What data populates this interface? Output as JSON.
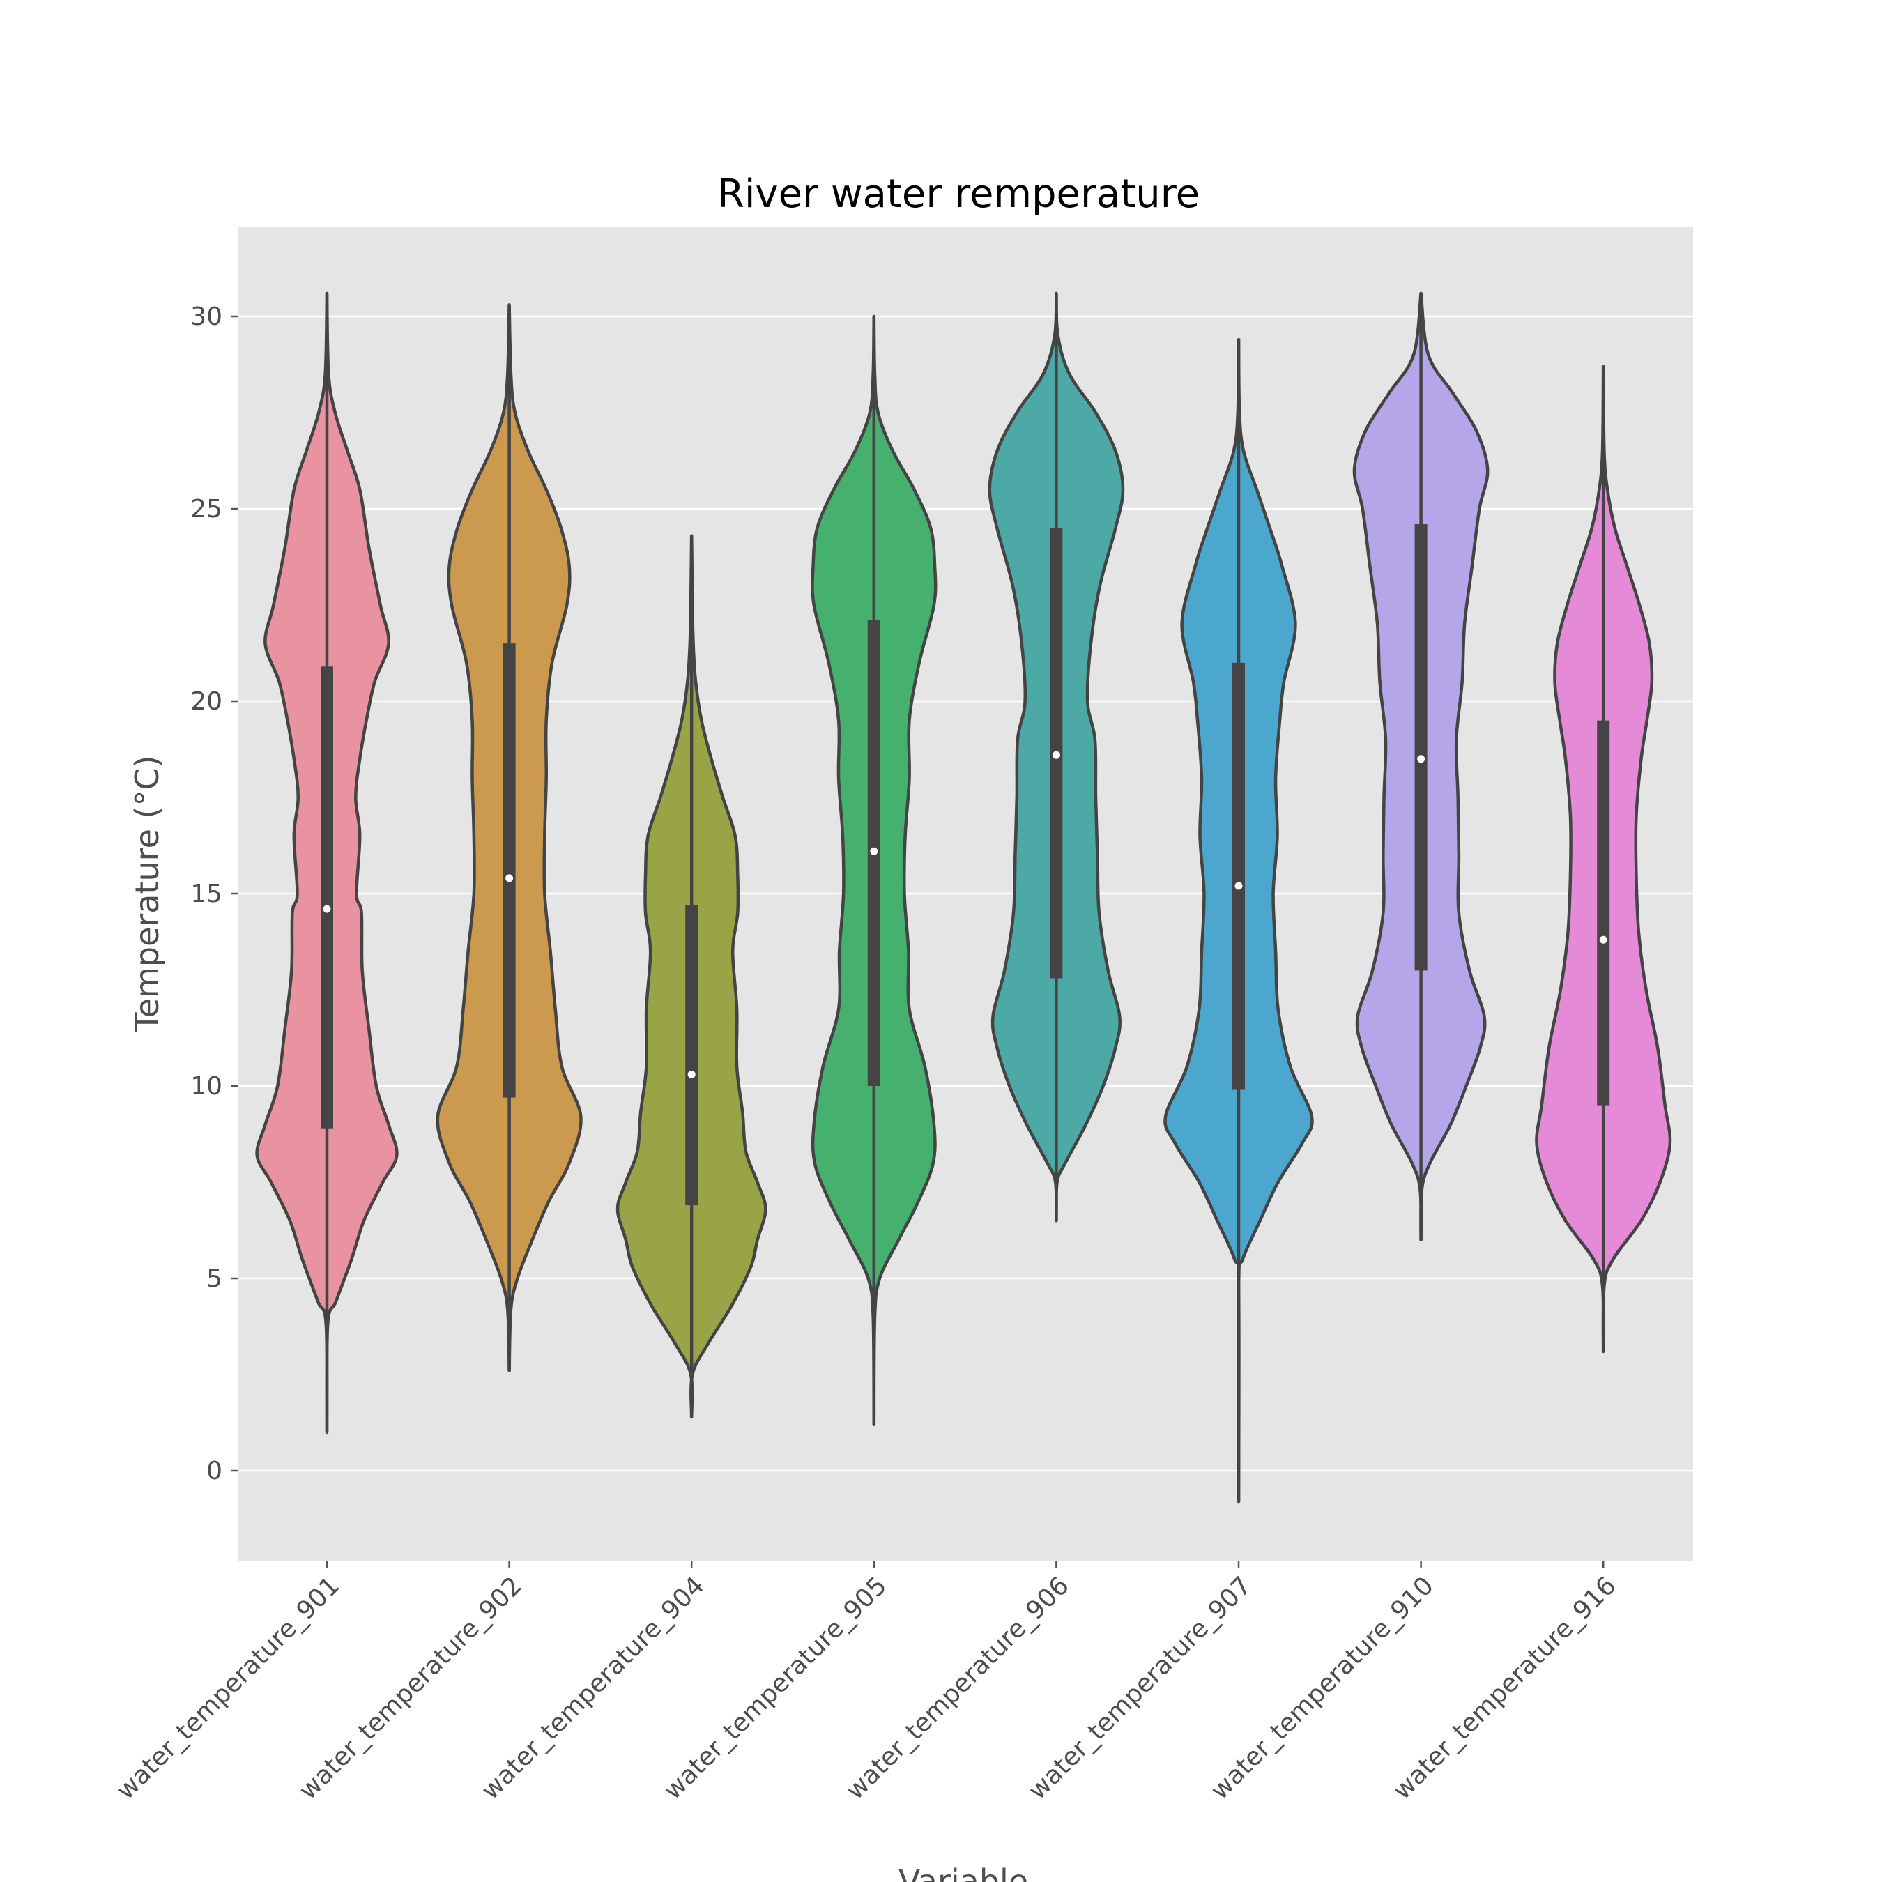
{
  "chart_data": {
    "type": "violin",
    "title": "River water remperature",
    "xlabel": "Variable",
    "ylabel": "Temperature (°C)",
    "ylim": [
      -2.3,
      32.3
    ],
    "yticks": [
      0,
      5,
      10,
      15,
      20,
      25,
      30
    ],
    "grid": true,
    "background": "#e5e5e5",
    "line_color": "#444444",
    "categories": [
      "water_temperature_901",
      "water_temperature_902",
      "water_temperature_904",
      "water_temperature_905",
      "water_temperature_906",
      "water_temperature_907",
      "water_temperature_910",
      "water_temperature_916"
    ],
    "series": [
      {
        "color": "#e8939f",
        "min": 1.0,
        "max": 30.6,
        "q1": 8.9,
        "median": 14.6,
        "q3": 20.9,
        "density": [
          [
            1.0,
            0.0
          ],
          [
            3.8,
            0.01
          ],
          [
            4.4,
            0.11
          ],
          [
            5.5,
            0.3
          ],
          [
            6.5,
            0.45
          ],
          [
            7.5,
            0.68
          ],
          [
            8.2,
            0.85
          ],
          [
            9.0,
            0.75
          ],
          [
            10.0,
            0.6
          ],
          [
            11.5,
            0.51
          ],
          [
            13.0,
            0.43
          ],
          [
            14.5,
            0.42
          ],
          [
            15.0,
            0.36
          ],
          [
            16.5,
            0.4
          ],
          [
            17.5,
            0.35
          ],
          [
            18.5,
            0.4
          ],
          [
            19.5,
            0.48
          ],
          [
            20.5,
            0.58
          ],
          [
            21.5,
            0.75
          ],
          [
            22.5,
            0.65
          ],
          [
            24.0,
            0.51
          ],
          [
            25.5,
            0.4
          ],
          [
            26.5,
            0.25
          ],
          [
            27.5,
            0.1
          ],
          [
            28.5,
            0.02
          ],
          [
            30.6,
            0.0
          ]
        ]
      },
      {
        "color": "#cc9a4f",
        "min": 2.6,
        "max": 30.3,
        "q1": 9.7,
        "median": 15.4,
        "q3": 21.5,
        "density": [
          [
            2.6,
            0.0
          ],
          [
            4.2,
            0.02
          ],
          [
            5.0,
            0.1
          ],
          [
            6.0,
            0.28
          ],
          [
            7.0,
            0.48
          ],
          [
            8.0,
            0.73
          ],
          [
            9.2,
            0.87
          ],
          [
            10.5,
            0.64
          ],
          [
            12.0,
            0.56
          ],
          [
            13.5,
            0.5
          ],
          [
            15.0,
            0.43
          ],
          [
            16.5,
            0.43
          ],
          [
            18.0,
            0.45
          ],
          [
            19.5,
            0.45
          ],
          [
            21.0,
            0.52
          ],
          [
            22.5,
            0.7
          ],
          [
            23.5,
            0.73
          ],
          [
            24.5,
            0.63
          ],
          [
            25.5,
            0.45
          ],
          [
            26.5,
            0.23
          ],
          [
            27.5,
            0.07
          ],
          [
            28.5,
            0.02
          ],
          [
            30.3,
            0.0
          ]
        ]
      },
      {
        "color": "#98a446",
        "min": 1.4,
        "max": 24.3,
        "q1": 6.9,
        "median": 10.3,
        "q3": 14.7,
        "density": [
          [
            1.4,
            0.0
          ],
          [
            2.5,
            0.01
          ],
          [
            3.3,
            0.2
          ],
          [
            4.3,
            0.49
          ],
          [
            5.3,
            0.72
          ],
          [
            6.0,
            0.8
          ],
          [
            6.8,
            0.9
          ],
          [
            7.5,
            0.8
          ],
          [
            8.3,
            0.66
          ],
          [
            9.3,
            0.62
          ],
          [
            10.5,
            0.55
          ],
          [
            12.0,
            0.55
          ],
          [
            13.5,
            0.5
          ],
          [
            14.5,
            0.56
          ],
          [
            15.5,
            0.56
          ],
          [
            16.5,
            0.53
          ],
          [
            17.5,
            0.38
          ],
          [
            18.5,
            0.24
          ],
          [
            19.5,
            0.12
          ],
          [
            20.5,
            0.05
          ],
          [
            21.5,
            0.02
          ],
          [
            22.5,
            0.01
          ],
          [
            24.3,
            0.0
          ]
        ]
      },
      {
        "color": "#46b06f",
        "min": 1.2,
        "max": 30.0,
        "q1": 10.0,
        "median": 16.1,
        "q3": 22.1,
        "density": [
          [
            1.2,
            0.0
          ],
          [
            4.0,
            0.01
          ],
          [
            5.0,
            0.07
          ],
          [
            6.0,
            0.3
          ],
          [
            7.0,
            0.54
          ],
          [
            8.0,
            0.72
          ],
          [
            9.0,
            0.73
          ],
          [
            10.5,
            0.62
          ],
          [
            12.0,
            0.43
          ],
          [
            13.5,
            0.42
          ],
          [
            15.0,
            0.37
          ],
          [
            16.5,
            0.38
          ],
          [
            18.0,
            0.43
          ],
          [
            19.5,
            0.43
          ],
          [
            21.0,
            0.55
          ],
          [
            22.5,
            0.73
          ],
          [
            23.5,
            0.74
          ],
          [
            24.5,
            0.69
          ],
          [
            25.5,
            0.49
          ],
          [
            26.5,
            0.23
          ],
          [
            27.5,
            0.05
          ],
          [
            28.5,
            0.01
          ],
          [
            30.0,
            0.0
          ]
        ]
      },
      {
        "color": "#4ca9a5",
        "min": 6.5,
        "max": 30.6,
        "q1": 12.8,
        "median": 18.6,
        "q3": 24.5,
        "density": [
          [
            6.5,
            0.0
          ],
          [
            7.5,
            0.01
          ],
          [
            8.0,
            0.11
          ],
          [
            9.0,
            0.36
          ],
          [
            10.0,
            0.57
          ],
          [
            11.0,
            0.72
          ],
          [
            11.8,
            0.77
          ],
          [
            13.0,
            0.63
          ],
          [
            14.5,
            0.52
          ],
          [
            16.0,
            0.5
          ],
          [
            17.5,
            0.48
          ],
          [
            19.0,
            0.47
          ],
          [
            20.0,
            0.38
          ],
          [
            21.5,
            0.42
          ],
          [
            23.0,
            0.53
          ],
          [
            24.5,
            0.72
          ],
          [
            25.5,
            0.81
          ],
          [
            26.5,
            0.72
          ],
          [
            27.5,
            0.48
          ],
          [
            28.5,
            0.16
          ],
          [
            29.5,
            0.02
          ],
          [
            30.6,
            0.0
          ]
        ]
      },
      {
        "color": "#4ba7ce",
        "min": -0.8,
        "max": 29.4,
        "q1": 9.9,
        "median": 15.2,
        "q3": 21.0,
        "density": [
          [
            -0.8,
            0.0
          ],
          [
            4.8,
            0.0
          ],
          [
            5.5,
            0.05
          ],
          [
            6.5,
            0.26
          ],
          [
            7.5,
            0.48
          ],
          [
            8.5,
            0.77
          ],
          [
            9.2,
            0.89
          ],
          [
            10.5,
            0.63
          ],
          [
            12.0,
            0.48
          ],
          [
            13.5,
            0.45
          ],
          [
            15.0,
            0.42
          ],
          [
            16.5,
            0.47
          ],
          [
            18.0,
            0.45
          ],
          [
            19.5,
            0.5
          ],
          [
            20.5,
            0.55
          ],
          [
            22.0,
            0.69
          ],
          [
            23.5,
            0.53
          ],
          [
            24.5,
            0.38
          ],
          [
            25.5,
            0.22
          ],
          [
            26.5,
            0.06
          ],
          [
            27.5,
            0.01
          ],
          [
            29.4,
            0.0
          ]
        ]
      },
      {
        "color": "#b5a6ea",
        "min": 6.0,
        "max": 30.6,
        "q1": 13.0,
        "median": 18.5,
        "q3": 24.6,
        "density": [
          [
            6.0,
            0.0
          ],
          [
            7.3,
            0.01
          ],
          [
            8.0,
            0.11
          ],
          [
            9.0,
            0.36
          ],
          [
            10.0,
            0.55
          ],
          [
            11.0,
            0.72
          ],
          [
            11.8,
            0.77
          ],
          [
            13.0,
            0.59
          ],
          [
            14.5,
            0.46
          ],
          [
            16.0,
            0.46
          ],
          [
            17.5,
            0.45
          ],
          [
            19.0,
            0.43
          ],
          [
            20.5,
            0.5
          ],
          [
            22.0,
            0.53
          ],
          [
            23.5,
            0.62
          ],
          [
            25.0,
            0.71
          ],
          [
            26.0,
            0.81
          ],
          [
            27.0,
            0.68
          ],
          [
            28.0,
            0.39
          ],
          [
            29.0,
            0.09
          ],
          [
            30.6,
            0.0
          ]
        ]
      },
      {
        "color": "#e48ad6",
        "min": 3.1,
        "max": 28.7,
        "q1": 9.5,
        "median": 13.8,
        "q3": 19.5,
        "density": [
          [
            3.1,
            0.0
          ],
          [
            4.8,
            0.01
          ],
          [
            5.5,
            0.12
          ],
          [
            6.5,
            0.46
          ],
          [
            7.5,
            0.69
          ],
          [
            8.5,
            0.81
          ],
          [
            9.5,
            0.75
          ],
          [
            11.0,
            0.66
          ],
          [
            12.5,
            0.52
          ],
          [
            14.0,
            0.43
          ],
          [
            15.5,
            0.4
          ],
          [
            17.0,
            0.4
          ],
          [
            18.5,
            0.46
          ],
          [
            19.5,
            0.53
          ],
          [
            20.5,
            0.59
          ],
          [
            21.5,
            0.56
          ],
          [
            22.5,
            0.44
          ],
          [
            23.5,
            0.29
          ],
          [
            24.5,
            0.14
          ],
          [
            25.5,
            0.05
          ],
          [
            26.5,
            0.01
          ],
          [
            28.7,
            0.0
          ]
        ]
      }
    ]
  }
}
